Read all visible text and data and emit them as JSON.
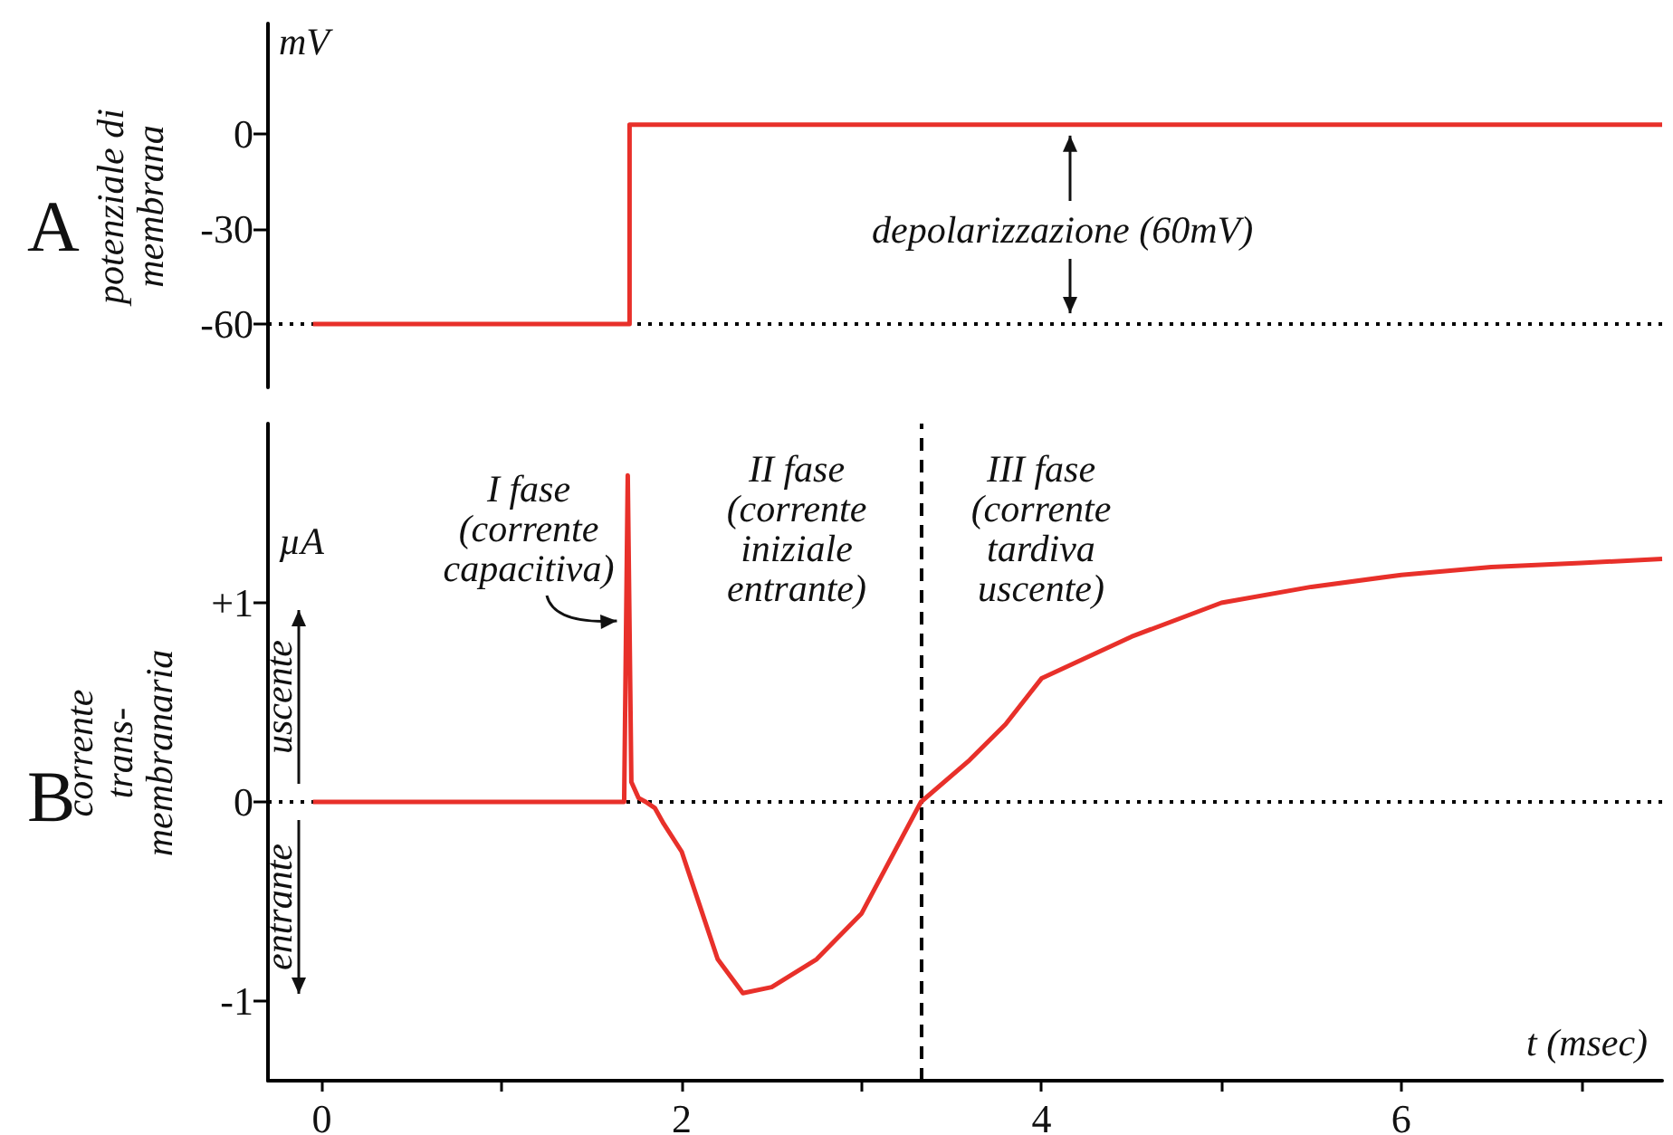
{
  "chart_data": [
    {
      "type": "line",
      "title": "A",
      "ylabel": "potenziale di membrana",
      "color": "#e8302a",
      "marker": "none",
      "grid": false,
      "tick_labels": "y",
      "x": [
        -0.05,
        1.71,
        1.71,
        7.45
      ],
      "values": [
        -60,
        -60,
        3,
        3
      ],
      "xlim": [
        -0.3,
        7.45
      ],
      "xticks": [
        0,
        2,
        4,
        6
      ],
      "ylim": [
        -80,
        35
      ],
      "yticks": [
        -60,
        -30,
        0
      ],
      "ref_lines": [
        {
          "axis": "y",
          "value": -60,
          "line_style": "dotted",
          "color": "#000000"
        }
      ],
      "annotations": [
        "mV",
        "depolarizzazione (60mV)"
      ]
    },
    {
      "type": "line",
      "title": "B",
      "ylabel": "corrente trans-membranaria",
      "xlabel": "t (msec)",
      "color": "#e8302a",
      "marker": "none",
      "grid": false,
      "x": [
        -0.05,
        1.68,
        1.7,
        1.72,
        1.76,
        1.8,
        1.85,
        1.9,
        2.0,
        2.1,
        2.2,
        2.34,
        2.5,
        2.75,
        3.0,
        3.33,
        3.6,
        3.8,
        4.0,
        4.5,
        5.0,
        5.5,
        6.0,
        6.5,
        7.0,
        7.45
      ],
      "values": [
        0,
        0,
        1.64,
        0.1,
        0.02,
        0,
        -0.03,
        -0.11,
        -0.25,
        -0.52,
        -0.79,
        -0.96,
        -0.93,
        -0.79,
        -0.56,
        0,
        0.21,
        0.39,
        0.62,
        0.83,
        1.0,
        1.08,
        1.14,
        1.18,
        1.2,
        1.22
      ],
      "xlim": [
        -0.3,
        7.45
      ],
      "xticks": [
        0,
        {
          "value": 1,
          "label": null
        },
        2,
        {
          "value": 3,
          "label": null
        },
        4,
        {
          "value": 5,
          "label": null
        },
        6,
        {
          "value": 7,
          "label": null
        }
      ],
      "ylim": [
        -1.4,
        1.9
      ],
      "yticks": [
        -1,
        0,
        {
          "value": 1,
          "label": "+1"
        }
      ],
      "ref_lines": [
        {
          "axis": "y",
          "value": 0,
          "line_style": "dotted",
          "color": "#000000"
        },
        {
          "axis": "x",
          "value": 3.33,
          "line_style": "dashed",
          "color": "#000000"
        }
      ],
      "annotations": [
        "µA",
        "uscente",
        "entrante",
        "I fase (corrente capacitiva)",
        "II fase (corrente iniziale entrante)",
        "III fase (corrente tardiva uscente)"
      ]
    }
  ]
}
